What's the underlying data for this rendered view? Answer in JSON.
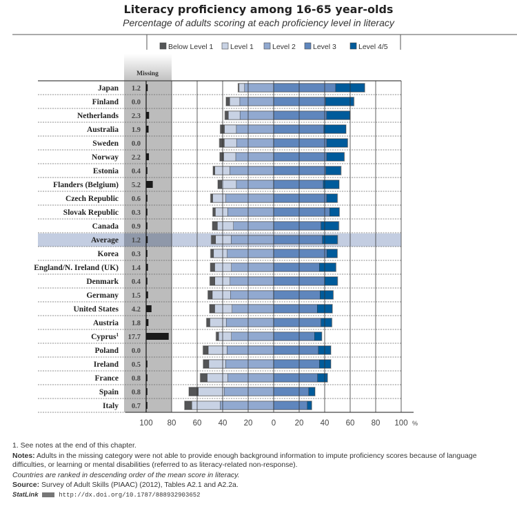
{
  "chart_data": {
    "type": "bar",
    "title": "Literacy proficiency among 16-65 year-olds",
    "subtitle": "Percentage of adults scoring at each proficiency level in literacy",
    "missing_label": "Missing",
    "unit_label": "%",
    "x_ticks": [
      "100",
      "80",
      "60",
      "40",
      "20",
      "0",
      "20",
      "40",
      "60",
      "80",
      "100"
    ],
    "xlim": [
      -100,
      100
    ],
    "legend": [
      "Below Level 1",
      "Level 1",
      "Level 2",
      "Level 3",
      "Level 4/5"
    ],
    "colors": {
      "below1": "#545557",
      "level1": "#c8d2e4",
      "level2": "#91a9d0",
      "level3": "#5f86bd",
      "level45": "#005b9b",
      "missing": "#1a1a1a",
      "highlight": "#c3cde1",
      "missing_bg": "#bcbcbc"
    },
    "highlight_row": "Average",
    "categories": [
      "Japan",
      "Finland",
      "Netherlands",
      "Australia",
      "Sweden",
      "Norway",
      "Estonia",
      "Flanders (Belgium)",
      "Czech Republic",
      "Slovak Republic",
      "Canada",
      "Average",
      "Korea",
      "England/N. Ireland (UK)",
      "Denmark",
      "Germany",
      "United States",
      "Austria",
      "Cyprus",
      "Poland",
      "Ireland",
      "France",
      "Spain",
      "Italy"
    ],
    "footnote_marks": [
      "",
      "",
      "",
      "",
      "",
      "",
      "",
      "",
      "",
      "",
      "",
      "",
      "",
      "",
      "",
      "",
      "",
      "",
      "1",
      "",
      "",
      "",
      "",
      ""
    ],
    "missing": [
      "1.2",
      "0.0",
      "2.3",
      "1.9",
      "0.0",
      "2.2",
      "0.4",
      "5.2",
      "0.6",
      "0.3",
      "0.9",
      "1.2",
      "0.3",
      "1.4",
      "0.4",
      "1.5",
      "4.2",
      "1.8",
      "17.7",
      "0.0",
      "0.5",
      "0.8",
      "0.8",
      "0.7"
    ],
    "series": [
      {
        "name": "Below Level 1",
        "values": [
          0.6,
          2.7,
          2.6,
          3.1,
          3.7,
          2.9,
          1.3,
          3.0,
          1.5,
          1.9,
          3.8,
          3.3,
          2.2,
          3.3,
          3.8,
          3.3,
          3.9,
          2.5,
          1.9,
          3.9,
          4.3,
          5.3,
          7.2,
          5.5
        ]
      },
      {
        "name": "Level 1",
        "values": [
          4.3,
          8.0,
          9.1,
          9.4,
          9.6,
          9.5,
          11.8,
          11.4,
          10.3,
          9.7,
          12.6,
          12.2,
          10.7,
          13.1,
          11.9,
          14.2,
          13.6,
          12.8,
          10.0,
          14.8,
          13.2,
          16.2,
          20.3,
          22.2
        ]
      },
      {
        "name": "Level 2",
        "values": [
          22.8,
          26.5,
          26.4,
          29.2,
          29.1,
          29.7,
          34.3,
          29.2,
          37.5,
          36.0,
          31.5,
          33.3,
          36.4,
          33.1,
          34.2,
          33.9,
          32.6,
          37.2,
          33.1,
          36.5,
          37.6,
          35.9,
          38.8,
          42.0
        ]
      },
      {
        "name": "Level 3",
        "values": [
          48.6,
          40.7,
          41.5,
          39.3,
          41.6,
          41.6,
          40.9,
          38.9,
          41.6,
          43.9,
          37.1,
          38.2,
          41.7,
          35.9,
          39.9,
          36.4,
          34.2,
          37.1,
          32.0,
          35.1,
          35.9,
          34.4,
          27.5,
          26.4
        ]
      },
      {
        "name": "Level 4/5",
        "values": [
          22.7,
          22.1,
          18.2,
          17.3,
          16.3,
          13.7,
          11.8,
          12.3,
          8.3,
          7.5,
          13.9,
          11.8,
          8.1,
          12.8,
          10.1,
          10.2,
          11.7,
          8.4,
          5.6,
          9.6,
          8.8,
          7.7,
          4.8,
          3.3
        ]
      }
    ]
  },
  "footer": {
    "note1": "1. See notes at the end of this chapter.",
    "notes_label": "Notes:",
    "notes_text": " Adults in the missing category were not able to provide enough background information to impute proficiency scores because of language difficulties, or learning or mental disabilities (referred to as literacy-related non-response).",
    "ranking": "Countries are ranked in descending order of the mean score in literacy.",
    "source_label": "Source:",
    "source_text": " Survey of Adult Skills (PIAAC) (2012), Tables A2.1 and A2.2a.",
    "statlink_label": "StatLink",
    "statlink_url": "http://dx.doi.org/10.1787/888932903652"
  }
}
